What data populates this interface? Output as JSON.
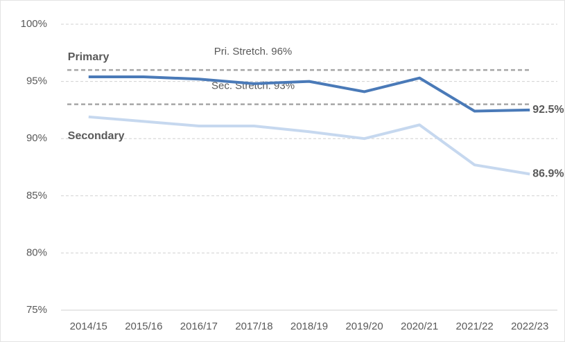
{
  "chart_data": {
    "type": "line",
    "categories": [
      "2014/15",
      "2015/16",
      "2016/17",
      "2017/18",
      "2018/19",
      "2019/20",
      "2020/21",
      "2021/22",
      "2022/23"
    ],
    "series": [
      {
        "name": "Primary",
        "color": "#4a7ab8",
        "label_color": "#2e4f7e",
        "values": [
          95.4,
          95.4,
          95.2,
          94.8,
          95.0,
          94.1,
          95.3,
          92.4,
          92.5
        ],
        "value_labels": [
          null,
          null,
          null,
          null,
          null,
          null,
          null,
          null,
          "92.5%"
        ]
      },
      {
        "name": "Secondary",
        "color": "#c6d8ef",
        "label_color": "#5b8ac4",
        "values": [
          91.9,
          91.5,
          91.1,
          91.1,
          90.6,
          90.0,
          91.2,
          87.7,
          86.9
        ],
        "value_labels": [
          null,
          null,
          null,
          null,
          null,
          null,
          null,
          null,
          "86.9%"
        ]
      }
    ],
    "reference_lines": [
      {
        "value": 96,
        "label": "Pri. Stretch. 96%"
      },
      {
        "value": 93,
        "label": "Sec. Stretch. 93%"
      }
    ],
    "ylim": [
      75,
      100
    ],
    "yticks": [
      {
        "value": 75,
        "label": "75%"
      },
      {
        "value": 80,
        "label": "80%"
      },
      {
        "value": 85,
        "label": "85%"
      },
      {
        "value": 90,
        "label": "90%"
      },
      {
        "value": 95,
        "label": "95%"
      },
      {
        "value": 100,
        "label": "100%"
      }
    ],
    "grid": true
  }
}
